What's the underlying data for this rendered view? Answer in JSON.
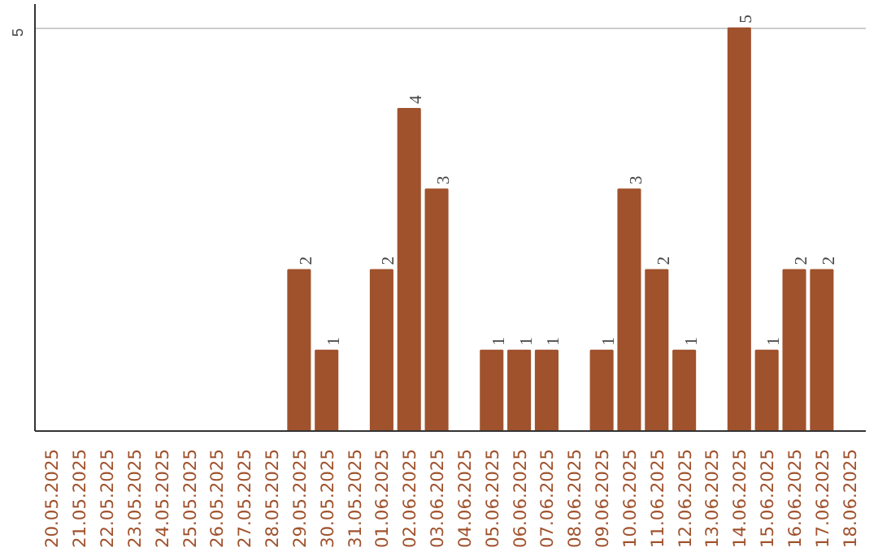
{
  "chart_data": {
    "type": "bar",
    "categories": [
      "20.05.2025",
      "21.05.2025",
      "22.05.2025",
      "23.05.2025",
      "24.05.2025",
      "25.05.2025",
      "26.05.2025",
      "27.05.2025",
      "28.05.2025",
      "29.05.2025",
      "30.05.2025",
      "31.05.2025",
      "01.06.2025",
      "02.06.2025",
      "03.06.2025",
      "04.06.2025",
      "05.06.2025",
      "06.06.2025",
      "07.06.2025",
      "08.06.2025",
      "09.06.2025",
      "10.06.2025",
      "11.06.2025",
      "12.06.2025",
      "13.06.2025",
      "14.06.2025",
      "15.06.2025",
      "16.06.2025",
      "17.06.2025",
      "18.06.2025"
    ],
    "values": [
      0,
      0,
      0,
      0,
      0,
      0,
      0,
      0,
      0,
      2,
      1,
      0,
      2,
      4,
      3,
      0,
      1,
      1,
      1,
      0,
      1,
      3,
      2,
      1,
      0,
      5,
      1,
      2,
      2,
      0
    ],
    "value_labels": [
      null,
      null,
      null,
      null,
      null,
      null,
      null,
      null,
      null,
      "2",
      "1",
      null,
      "2",
      "4",
      "3",
      null,
      "1",
      "1",
      "1",
      null,
      "1",
      "3",
      "2",
      "1",
      null,
      "5",
      "1",
      "2",
      "2",
      null
    ],
    "color": "#a0522d",
    "ylim": [
      0,
      5.3
    ],
    "yticks": [
      5
    ],
    "grid": "y"
  }
}
